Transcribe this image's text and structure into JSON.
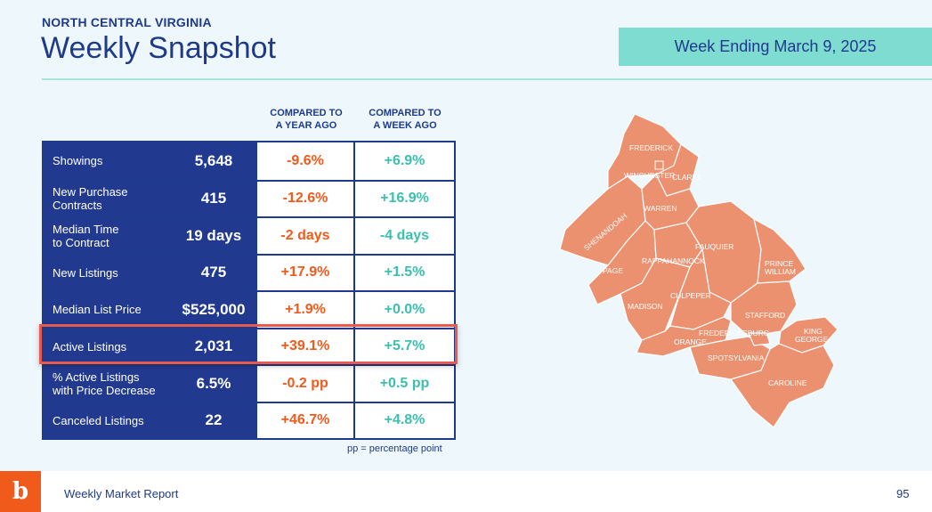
{
  "header": {
    "region": "NORTH CENTRAL VIRGINIA",
    "title": "Weekly Snapshot",
    "week_ending": "Week Ending March 9, 2025"
  },
  "table": {
    "col_year_line1": "COMPARED TO",
    "col_year_line2": "A YEAR AGO",
    "col_week_line1": "COMPARED TO",
    "col_week_line2": "A WEEK AGO",
    "rows": [
      {
        "label_1": "Showings",
        "label_2": "",
        "value": "5,648",
        "vs_year": "-9.6%",
        "vs_week": "+6.9%"
      },
      {
        "label_1": "New Purchase",
        "label_2": "Contracts",
        "value": "415",
        "vs_year": "-12.6%",
        "vs_week": "+16.9%"
      },
      {
        "label_1": "Median Time",
        "label_2": "to Contract",
        "value": "19 days",
        "vs_year": "-2 days",
        "vs_week": "-4 days"
      },
      {
        "label_1": "New Listings",
        "label_2": "",
        "value": "475",
        "vs_year": "+17.9%",
        "vs_week": "+1.5%"
      },
      {
        "label_1": "Median List Price",
        "label_2": "",
        "value": "$525,000",
        "vs_year": "+1.9%",
        "vs_week": "+0.0%"
      },
      {
        "label_1": "Active Listings",
        "label_2": "",
        "value": "2,031",
        "vs_year": "+39.1%",
        "vs_week": "+5.7%"
      },
      {
        "label_1": "% Active Listings",
        "label_2": "with Price Decrease",
        "value": "6.5%",
        "vs_year": "-0.2 pp",
        "vs_week": "+0.5 pp"
      },
      {
        "label_1": "Canceled Listings",
        "label_2": "",
        "value": "22",
        "vs_year": "+46.7%",
        "vs_week": "+4.8%"
      }
    ],
    "footnote": "pp = percentage point"
  },
  "map": {
    "counties": [
      "FREDERICK",
      "WINCHESTER",
      "CLARKE",
      "WARREN",
      "SHENANDOAH",
      "PAGE",
      "RAPPAHANNOCK",
      "FAUQUIER",
      "PRINCE",
      "WILLIAM",
      "MADISON",
      "CULPEPER",
      "STAFFORD",
      "KING",
      "GEORGE",
      "FREDERICKSBURG",
      "ORANGE",
      "SPOTSYLVANIA",
      "CAROLINE"
    ],
    "fill_color": "#ec9170"
  },
  "footer": {
    "logo_glyph": "b",
    "title": "Weekly Market Report",
    "page": "95"
  },
  "colors": {
    "navy": "#213a8f",
    "orange": "#f05a1a",
    "teal": "#3cc0ad",
    "banner": "#7fdcd0",
    "highlight": "#e8594f"
  }
}
